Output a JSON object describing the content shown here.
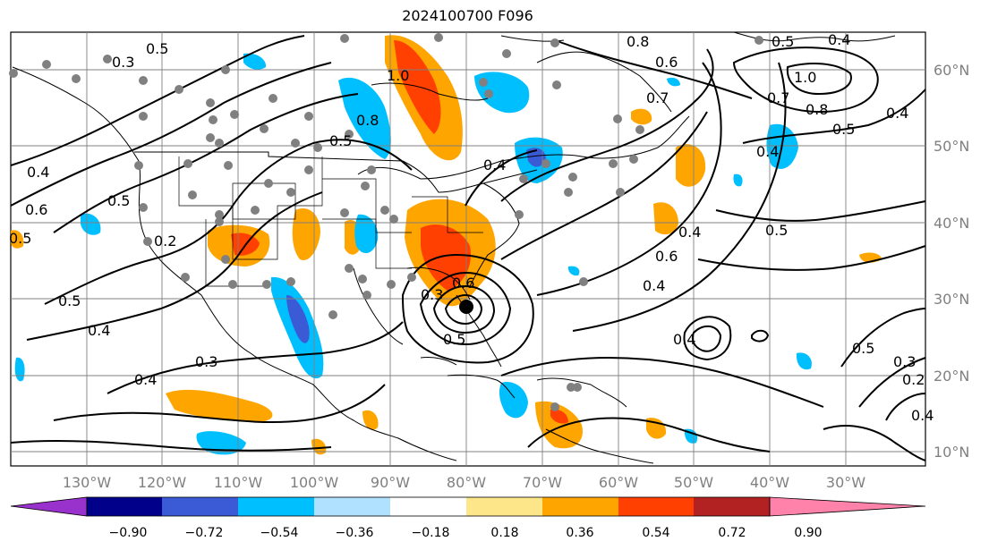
{
  "title": "2024100700 F096",
  "map": {
    "lon_ticks": [
      "130°W",
      "120°W",
      "110°W",
      "100°W",
      "90°W",
      "80°W",
      "70°W",
      "60°W",
      "50°W",
      "40°W",
      "30°W"
    ],
    "lat_ticks": [
      "60°N",
      "50°N",
      "40°N",
      "30°N",
      "20°N",
      "10°N"
    ],
    "contour_labels": [
      "0.5",
      "0.3",
      "0.4",
      "0.6",
      "0.5",
      "0.2",
      "0.5",
      "0.4",
      "0.4",
      "0.3",
      "0.5",
      "1.0",
      "0.8",
      "0.5",
      "0.4",
      "0.6",
      "0.5",
      "0.3",
      "0.8",
      "0.6",
      "0.7",
      "0.4",
      "0.6",
      "0.4",
      "0.5",
      "0.4",
      "0.4",
      "1.0",
      "0.8",
      "0.7",
      "0.5",
      "0.4",
      "0.5",
      "0.4",
      "0.5",
      "0.3",
      "0.2",
      "0.4"
    ]
  },
  "colorbar": {
    "labels": [
      "−0.90",
      "−0.72",
      "−0.54",
      "−0.36",
      "−0.18",
      "0.18",
      "0.36",
      "0.54",
      "0.72",
      "0.90"
    ],
    "colors": [
      "#9932cc",
      "#00008b",
      "#3b5bd6",
      "#00bfff",
      "#b0e2ff",
      "#ffffff",
      "#fde68a",
      "#ffa500",
      "#ff4000",
      "#b22222",
      "#ff82ab"
    ]
  }
}
